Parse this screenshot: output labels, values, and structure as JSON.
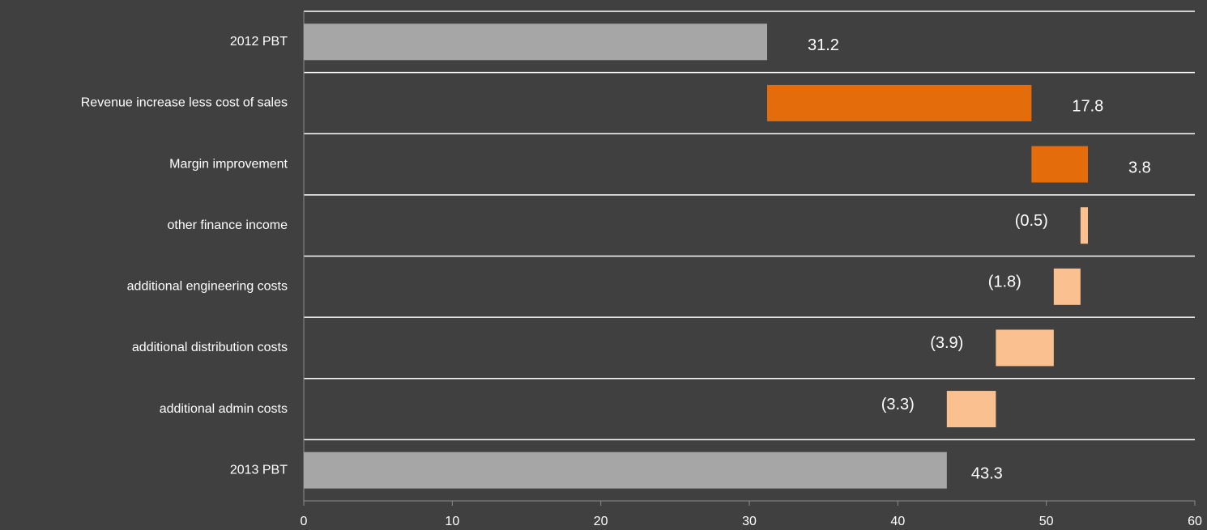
{
  "chart_data": {
    "type": "waterfall",
    "categories": [
      "2012 PBT",
      "Revenue increase less cost of sales",
      "Margin improvement",
      "other finance income",
      "additional engineering costs",
      "additional distribution costs",
      "additional admin costs",
      "2013 PBT"
    ],
    "values": [
      31.2,
      17.8,
      3.8,
      -0.5,
      -1.8,
      -3.9,
      -3.3,
      43.3
    ],
    "value_labels": [
      "31.2",
      "17.8",
      "3.8",
      "(0.5)",
      "(1.8)",
      "(3.9)",
      "(3.3)",
      "43.3"
    ],
    "colors": {
      "total": "#a6a6a6",
      "increase": "#e46c0a",
      "decrease": "#fac090"
    },
    "xlim": [
      0,
      60
    ],
    "xticks": [
      0,
      10,
      20,
      30,
      40,
      50,
      60
    ]
  }
}
